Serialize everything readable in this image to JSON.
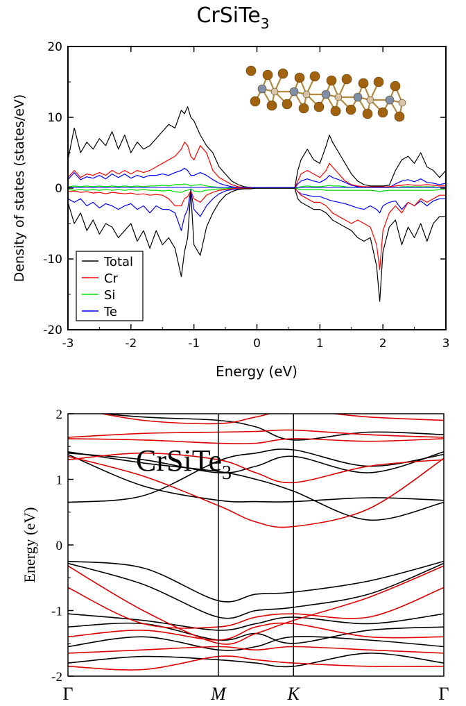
{
  "chart_data": [
    {
      "type": "line",
      "title": "CrSiTe",
      "title_sub": "3",
      "xlabel": "Energy (eV)",
      "ylabel": "Density of states (states/eV)",
      "xlim": [
        -3,
        3
      ],
      "ylim": [
        -20,
        20
      ],
      "xticks": [
        -3,
        -2,
        -1,
        0,
        1,
        2,
        3
      ],
      "yticks": [
        -20,
        -10,
        0,
        10,
        20
      ],
      "xtick_labels": [
        "-3",
        "-2",
        "-1",
        "0",
        "1",
        "2",
        "3"
      ],
      "ytick_labels": [
        "-20",
        "-10",
        "0",
        "10",
        "20"
      ],
      "legend_position": "bottom-left",
      "x": [
        -3.0,
        -2.9,
        -2.8,
        -2.7,
        -2.6,
        -2.5,
        -2.4,
        -2.3,
        -2.2,
        -2.1,
        -2.0,
        -1.9,
        -1.8,
        -1.7,
        -1.6,
        -1.5,
        -1.4,
        -1.3,
        -1.2,
        -1.15,
        -1.1,
        -1.05,
        -1.0,
        -0.9,
        -0.8,
        -0.7,
        -0.6,
        -0.5,
        -0.4,
        -0.3,
        -0.2,
        -0.1,
        0.0,
        0.1,
        0.2,
        0.3,
        0.4,
        0.5,
        0.6,
        0.65,
        0.7,
        0.8,
        0.9,
        1.0,
        1.1,
        1.15,
        1.2,
        1.3,
        1.4,
        1.5,
        1.6,
        1.7,
        1.8,
        1.9,
        1.95,
        2.0,
        2.1,
        2.2,
        2.3,
        2.4,
        2.5,
        2.6,
        2.7,
        2.8,
        2.9,
        3.0
      ],
      "series": [
        {
          "name": "Total",
          "color": "#000000",
          "up": [
            4.0,
            8.5,
            5.0,
            6.5,
            5.5,
            7.0,
            6.0,
            8.0,
            5.5,
            7.5,
            5.0,
            6.5,
            5.5,
            6.0,
            7.0,
            8.0,
            9.0,
            8.5,
            11.0,
            10.5,
            11.5,
            10.0,
            9.5,
            7.5,
            6.0,
            5.0,
            3.0,
            2.0,
            1.0,
            0.5,
            0.2,
            0.1,
            0.0,
            0.0,
            0.0,
            0.0,
            0.0,
            0.0,
            0.0,
            2.5,
            4.0,
            5.5,
            4.0,
            3.5,
            6.0,
            7.5,
            6.5,
            5.0,
            3.5,
            2.0,
            1.0,
            0.5,
            0.3,
            0.3,
            0.3,
            0.3,
            0.4,
            2.5,
            4.0,
            4.5,
            3.5,
            5.0,
            3.0,
            2.5,
            1.5,
            2.5
          ],
          "down": [
            -2.0,
            -5.0,
            -3.5,
            -6.0,
            -4.5,
            -6.5,
            -5.0,
            -5.5,
            -7.0,
            -6.0,
            -5.0,
            -7.5,
            -6.0,
            -8.5,
            -6.0,
            -8.0,
            -7.0,
            -8.5,
            -12.5,
            -9.0,
            -7.0,
            -0.5,
            -8.0,
            -9.5,
            -5.5,
            -3.5,
            -2.0,
            -1.0,
            -0.5,
            -0.2,
            -0.1,
            -0.1,
            0.0,
            0.0,
            0.0,
            0.0,
            0.0,
            0.0,
            0.0,
            -1.5,
            -2.0,
            -2.5,
            -3.0,
            -3.0,
            -3.5,
            -4.0,
            -4.5,
            -5.0,
            -5.5,
            -6.0,
            -7.0,
            -7.5,
            -7.0,
            -11.0,
            -16.0,
            -9.0,
            -5.5,
            -4.5,
            -8.0,
            -5.5,
            -7.0,
            -5.0,
            -7.5,
            -5.0,
            -4.0,
            -4.0
          ]
        },
        {
          "name": "Cr",
          "color": "#ff0000",
          "up": [
            1.5,
            2.5,
            1.5,
            2.0,
            1.8,
            2.2,
            1.8,
            2.5,
            2.0,
            2.5,
            2.0,
            2.5,
            2.2,
            2.5,
            3.0,
            3.5,
            4.0,
            4.5,
            5.5,
            6.5,
            6.0,
            4.5,
            4.0,
            6.0,
            5.0,
            2.5,
            1.5,
            1.0,
            0.5,
            0.2,
            0.1,
            0.0,
            0.0,
            0.0,
            0.0,
            0.0,
            0.0,
            0.0,
            0.0,
            1.0,
            2.0,
            2.5,
            2.0,
            1.5,
            2.5,
            3.5,
            3.0,
            2.0,
            1.0,
            0.5,
            0.3,
            0.2,
            0.2,
            0.2,
            0.2,
            0.2,
            0.2,
            0.3,
            0.4,
            0.5,
            0.4,
            0.4,
            0.5,
            0.4,
            0.3,
            0.3
          ],
          "down": [
            -0.5,
            -0.4,
            -0.6,
            -0.5,
            -0.7,
            -0.6,
            -0.8,
            -0.6,
            -0.7,
            -0.8,
            -0.7,
            -0.9,
            -0.8,
            -1.0,
            -0.9,
            -1.0,
            -1.5,
            -2.5,
            -2.5,
            -1.5,
            -1.2,
            -0.4,
            -1.5,
            -2.0,
            -1.0,
            -0.6,
            -0.3,
            -0.2,
            -0.1,
            0.0,
            0.0,
            0.0,
            0.0,
            0.0,
            0.0,
            0.0,
            0.0,
            0.0,
            0.0,
            -0.5,
            -1.0,
            -1.5,
            -2.0,
            -2.0,
            -2.5,
            -3.0,
            -3.5,
            -4.0,
            -4.5,
            -5.0,
            -4.5,
            -5.0,
            -5.5,
            -8.0,
            -11.5,
            -6.0,
            -3.5,
            -2.5,
            -3.5,
            -2.0,
            -2.5,
            -1.5,
            -2.0,
            -1.5,
            -1.0,
            -1.0
          ]
        },
        {
          "name": "Si",
          "color": "#00dd00",
          "up": [
            0.2,
            0.3,
            0.2,
            0.3,
            0.2,
            0.3,
            0.2,
            0.3,
            0.2,
            0.3,
            0.2,
            0.3,
            0.2,
            0.3,
            0.3,
            0.4,
            0.3,
            0.5,
            0.5,
            0.6,
            0.5,
            0.3,
            0.4,
            0.5,
            0.3,
            0.2,
            0.1,
            0.1,
            0.0,
            0.0,
            0.0,
            0.0,
            0.0,
            0.0,
            0.0,
            0.0,
            0.0,
            0.0,
            0.0,
            0.1,
            0.2,
            0.3,
            0.2,
            0.2,
            0.3,
            0.4,
            0.3,
            0.3,
            0.2,
            0.1,
            0.1,
            0.1,
            0.1,
            0.1,
            0.1,
            0.1,
            0.1,
            0.1,
            0.2,
            0.2,
            0.2,
            0.2,
            0.2,
            0.2,
            0.1,
            0.1
          ],
          "down": [
            -0.2,
            -0.3,
            -0.2,
            -0.3,
            -0.2,
            -0.3,
            -0.2,
            -0.3,
            -0.2,
            -0.3,
            -0.2,
            -0.3,
            -0.2,
            -0.3,
            -0.3,
            -0.4,
            -0.3,
            -0.5,
            -0.6,
            -0.4,
            -0.3,
            -0.1,
            -0.4,
            -0.5,
            -0.3,
            -0.2,
            -0.1,
            -0.1,
            0.0,
            0.0,
            0.0,
            0.0,
            0.0,
            0.0,
            0.0,
            0.0,
            0.0,
            0.0,
            0.0,
            -0.1,
            -0.2,
            -0.2,
            -0.2,
            -0.2,
            -0.3,
            -0.3,
            -0.3,
            -0.3,
            -0.3,
            -0.3,
            -0.3,
            -0.3,
            -0.3,
            -0.4,
            -0.5,
            -0.4,
            -0.3,
            -0.3,
            -0.3,
            -0.3,
            -0.3,
            -0.3,
            -0.3,
            -0.3,
            -0.2,
            -0.2
          ]
        },
        {
          "name": "Te",
          "color": "#0000ff",
          "up": [
            1.2,
            2.2,
            1.2,
            1.6,
            1.4,
            1.8,
            1.3,
            2.0,
            1.5,
            2.0,
            1.4,
            1.8,
            1.5,
            1.8,
            1.8,
            2.0,
            1.8,
            2.2,
            2.5,
            2.8,
            2.5,
            1.8,
            1.8,
            2.2,
            1.8,
            1.2,
            0.7,
            0.4,
            0.2,
            0.1,
            0.0,
            0.0,
            0.0,
            0.0,
            0.0,
            0.0,
            0.0,
            0.0,
            0.0,
            0.6,
            1.0,
            1.3,
            1.0,
            0.8,
            1.3,
            1.8,
            1.5,
            1.2,
            0.8,
            0.4,
            0.2,
            0.1,
            0.1,
            0.1,
            0.1,
            0.1,
            0.1,
            0.6,
            1.0,
            1.2,
            0.9,
            1.3,
            0.8,
            0.7,
            0.5,
            0.7
          ],
          "down": [
            -1.5,
            -2.0,
            -1.5,
            -2.5,
            -2.0,
            -2.8,
            -2.2,
            -2.5,
            -3.0,
            -2.5,
            -2.2,
            -3.0,
            -2.5,
            -3.5,
            -2.5,
            -3.0,
            -3.0,
            -3.5,
            -6.0,
            -4.0,
            -3.0,
            -0.2,
            -3.0,
            -4.0,
            -2.5,
            -1.5,
            -0.8,
            -0.4,
            -0.2,
            -0.1,
            0.0,
            0.0,
            0.0,
            0.0,
            0.0,
            0.0,
            0.0,
            0.0,
            0.0,
            -0.5,
            -0.8,
            -1.0,
            -1.2,
            -1.2,
            -1.5,
            -1.7,
            -1.8,
            -2.0,
            -2.2,
            -2.5,
            -2.8,
            -3.0,
            -2.5,
            -3.0,
            -3.5,
            -2.5,
            -2.0,
            -1.8,
            -3.0,
            -2.0,
            -2.5,
            -1.8,
            -2.5,
            -1.8,
            -1.5,
            -1.5
          ]
        }
      ]
    },
    {
      "type": "line",
      "title": "CrSiTe",
      "title_sub": "3",
      "xlabel": "",
      "ylabel": "Energy (eV)",
      "ylim": [
        -2,
        2
      ],
      "yticks": [
        -2,
        -1,
        0,
        1,
        2
      ],
      "ytick_labels": [
        "-2",
        "-1",
        "0",
        "1",
        "2"
      ],
      "kpath": [
        {
          "label": "Γ",
          "italic": false,
          "pos": 0.0
        },
        {
          "label": "M",
          "italic": true,
          "pos": 0.4
        },
        {
          "label": "K",
          "italic": true,
          "pos": 0.6
        },
        {
          "label": "Γ",
          "italic": false,
          "pos": 1.0
        }
      ],
      "spin_colors": {
        "up": "#000000",
        "down": "#dd0000"
      },
      "k": [
        0.0,
        0.2,
        0.4,
        0.5,
        0.6,
        0.8,
        1.0
      ],
      "bands": [
        {
          "spin": "up",
          "values": [
            1.42,
            1.25,
            1.12,
            1.0,
            0.82,
            0.38,
            0.65
          ]
        },
        {
          "spin": "up",
          "values": [
            1.38,
            0.9,
            0.68,
            0.66,
            0.66,
            0.72,
            0.68
          ]
        },
        {
          "spin": "up",
          "values": [
            0.65,
            0.75,
            1.28,
            1.4,
            1.45,
            1.2,
            1.38
          ]
        },
        {
          "spin": "up",
          "values": [
            1.4,
            1.3,
            1.1,
            1.2,
            1.35,
            1.1,
            1.42
          ]
        },
        {
          "spin": "up",
          "values": [
            2.05,
            1.95,
            1.9,
            1.8,
            1.6,
            1.72,
            1.68
          ]
        },
        {
          "spin": "up",
          "values": [
            -0.25,
            -0.35,
            -0.85,
            -0.75,
            -0.72,
            -0.55,
            -0.25
          ]
        },
        {
          "spin": "up",
          "values": [
            -0.28,
            -0.6,
            -1.1,
            -1.0,
            -0.95,
            -0.75,
            -0.28
          ]
        },
        {
          "spin": "up",
          "values": [
            -1.05,
            -1.15,
            -1.3,
            -1.2,
            -1.1,
            -1.2,
            -1.05
          ]
        },
        {
          "spin": "up",
          "values": [
            -1.25,
            -1.2,
            -1.45,
            -1.35,
            -1.5,
            -1.3,
            -1.25
          ]
        },
        {
          "spin": "up",
          "values": [
            -1.55,
            -1.4,
            -1.6,
            -1.55,
            -1.4,
            -1.45,
            -1.55
          ]
        },
        {
          "spin": "up",
          "values": [
            -1.8,
            -1.7,
            -1.75,
            -1.8,
            -1.85,
            -1.65,
            -1.8
          ]
        },
        {
          "spin": "down",
          "values": [
            1.35,
            1.05,
            0.6,
            0.35,
            0.28,
            0.55,
            1.32
          ]
        },
        {
          "spin": "down",
          "values": [
            1.3,
            1.4,
            1.3,
            1.1,
            0.95,
            1.2,
            1.3
          ]
        },
        {
          "spin": "down",
          "values": [
            1.62,
            1.6,
            1.55,
            1.55,
            1.62,
            1.58,
            1.62
          ]
        },
        {
          "spin": "down",
          "values": [
            1.64,
            1.7,
            1.72,
            1.73,
            1.75,
            1.68,
            1.64
          ]
        },
        {
          "spin": "down",
          "values": [
            2.1,
            1.9,
            1.85,
            1.95,
            2.05,
            1.95,
            1.9
          ]
        },
        {
          "spin": "down",
          "values": [
            -0.32,
            -1.0,
            -1.5,
            -1.35,
            -1.15,
            -0.8,
            -0.32
          ]
        },
        {
          "spin": "down",
          "values": [
            -0.65,
            -1.2,
            -1.25,
            -1.1,
            -1.05,
            -1.1,
            -0.65
          ]
        },
        {
          "spin": "down",
          "values": [
            -1.4,
            -1.3,
            -1.45,
            -1.25,
            -1.2,
            -1.4,
            -1.4
          ]
        },
        {
          "spin": "down",
          "values": [
            -1.65,
            -1.6,
            -1.55,
            -1.6,
            -1.55,
            -1.6,
            -1.65
          ]
        },
        {
          "spin": "down",
          "values": [
            -1.85,
            -1.9,
            -1.7,
            -1.75,
            -1.8,
            -1.85,
            -1.85
          ]
        }
      ]
    }
  ]
}
